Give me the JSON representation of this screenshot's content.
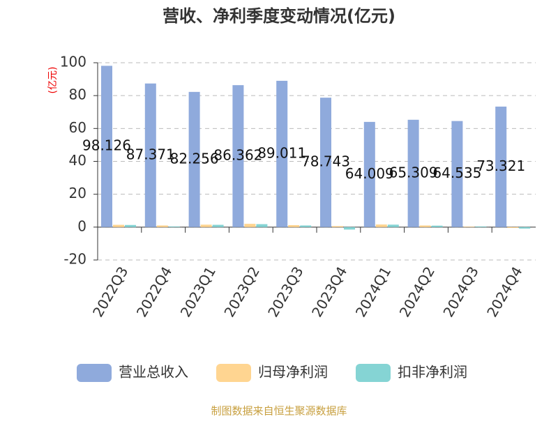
{
  "chart_data": {
    "type": "bar",
    "title": "营收、净利季度变动情况(亿元)",
    "y_label": "(亿元)",
    "categories": [
      "2022Q3",
      "2022Q4",
      "2023Q1",
      "2023Q2",
      "2023Q3",
      "2023Q4",
      "2024Q1",
      "2024Q2",
      "2024Q3",
      "2024Q4"
    ],
    "series": [
      {
        "name": "营业总收入",
        "color": "#8faadc",
        "values": [
          98.126,
          87.371,
          82.256,
          86.362,
          89.011,
          78.743,
          64.009,
          65.309,
          64.535,
          73.321
        ],
        "labels": true
      },
      {
        "name": "归母净利润",
        "color": "#ffd591",
        "values": [
          1.4,
          1.0,
          1.5,
          2.0,
          1.2,
          0.6,
          1.6,
          1.0,
          0.3,
          -0.5
        ]
      },
      {
        "name": "扣非净利润",
        "color": "#85d4d4",
        "values": [
          1.3,
          0.4,
          1.4,
          1.8,
          1.0,
          -1.5,
          1.5,
          0.9,
          0.4,
          -0.9
        ]
      }
    ],
    "ylim": [
      -20,
      100
    ],
    "yticks": [
      -20,
      0,
      20,
      40,
      60,
      80,
      100
    ],
    "grid": true,
    "source": "制图数据来自恒生聚源数据库"
  }
}
